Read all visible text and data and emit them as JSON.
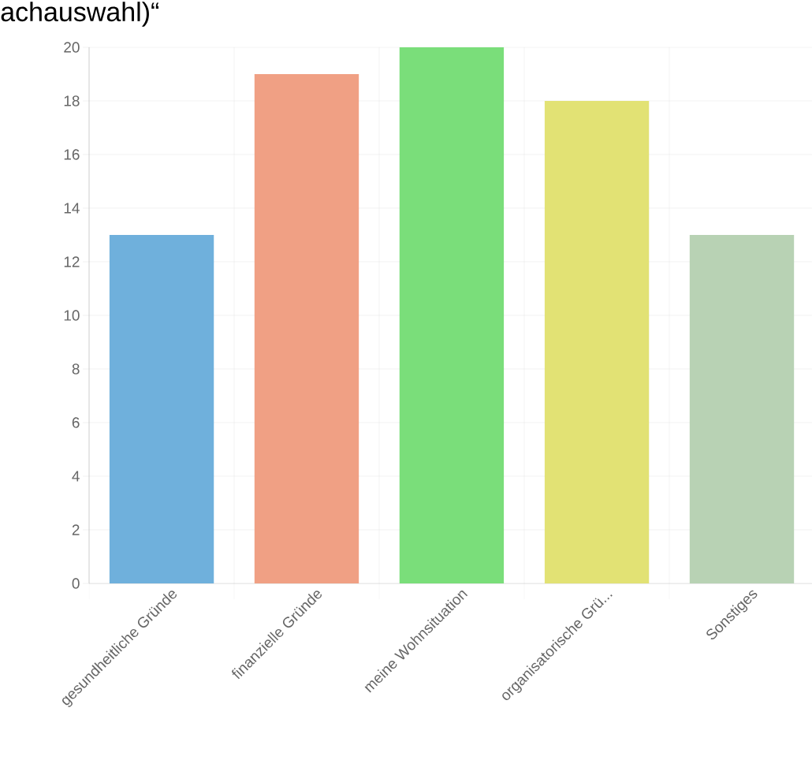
{
  "chart_data": {
    "type": "bar",
    "title": "achauswahl)“",
    "categories": [
      "gesundheitliche Gründe",
      "finanzielle Gründe",
      "meine Wohnsituation",
      "organisatorische Grü...",
      "Sonstiges"
    ],
    "values": [
      13,
      19,
      20,
      18,
      13
    ],
    "colors": [
      "#6fb0dc",
      "#f0a084",
      "#7ade7a",
      "#e2e274",
      "#b8d2b4"
    ],
    "ylim": [
      0,
      20
    ],
    "yticks": [
      0,
      2,
      4,
      6,
      8,
      10,
      12,
      14,
      16,
      18,
      20
    ],
    "grid": true
  }
}
